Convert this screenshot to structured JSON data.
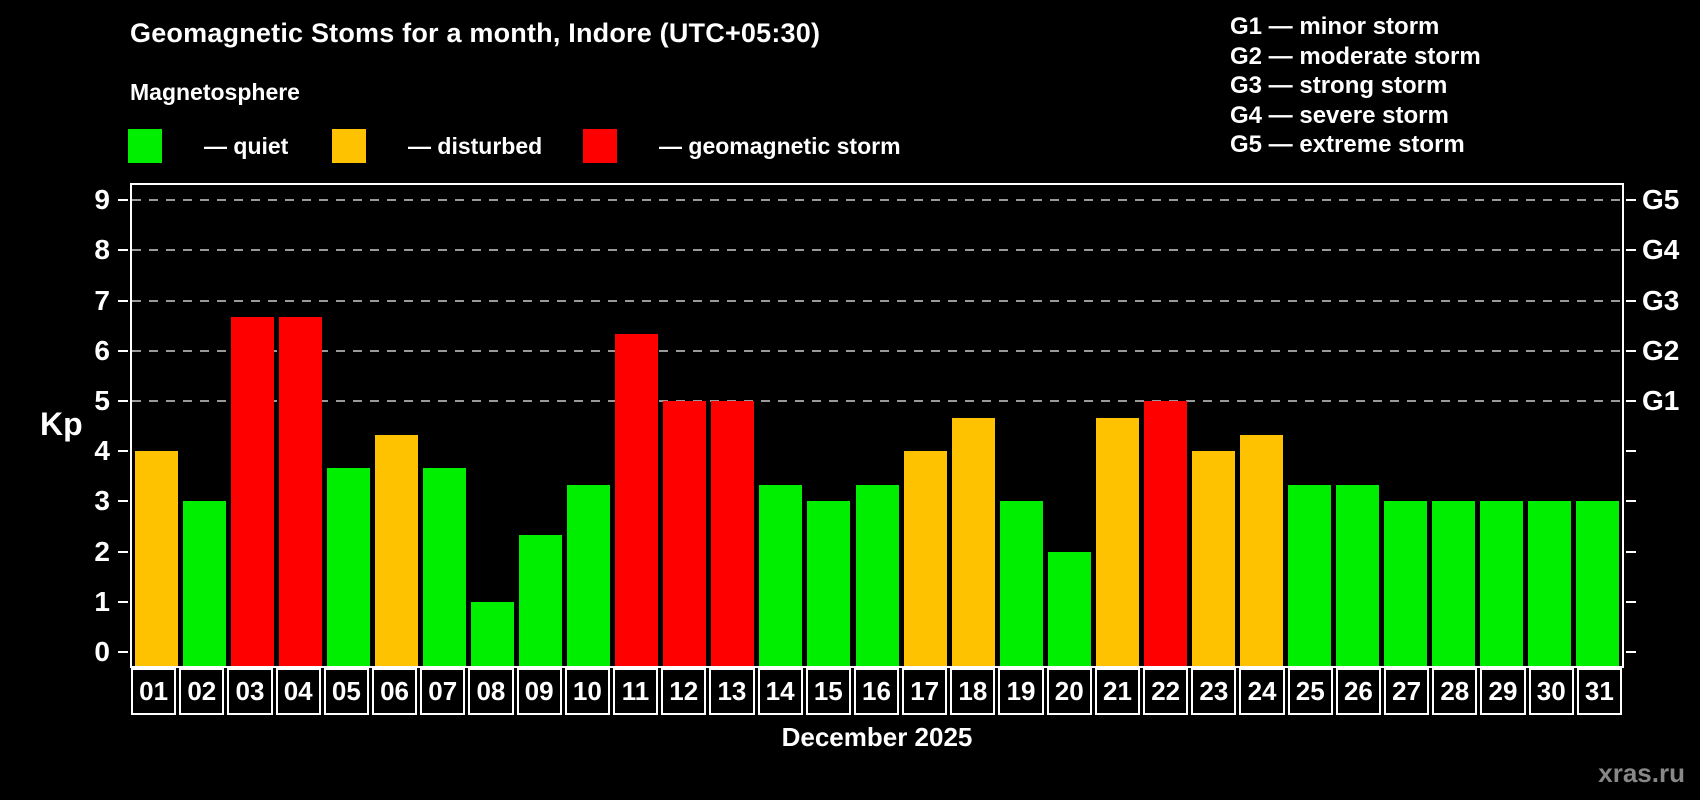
{
  "title": "Geomagnetic Stoms for a month, Indore (UTC+05:30)",
  "subtitle": "Magnetosphere",
  "colors": {
    "quiet": "#00ee00",
    "disturbed": "#ffc200",
    "storm": "#ff0000",
    "background": "#000000",
    "axis": "#ffffff",
    "grid": "#999999",
    "watermark": "#888888"
  },
  "legend": [
    {
      "key": "quiet",
      "label": "— quiet"
    },
    {
      "key": "disturbed",
      "label": "— disturbed"
    },
    {
      "key": "storm",
      "label": "— geomagnetic storm"
    }
  ],
  "g_scale_legend": [
    "G1 — minor storm",
    "G2 — moderate storm",
    "G3 — strong storm",
    "G4 — severe storm",
    "G5 — extreme storm"
  ],
  "y_axis": {
    "label": "Kp",
    "ticks": [
      0,
      1,
      2,
      3,
      4,
      5,
      6,
      7,
      8,
      9
    ],
    "grid_levels": [
      5,
      6,
      7,
      8,
      9
    ],
    "right_labels": [
      {
        "value": 5,
        "label": "G1"
      },
      {
        "value": 6,
        "label": "G2"
      },
      {
        "value": 7,
        "label": "G3"
      },
      {
        "value": 8,
        "label": "G4"
      },
      {
        "value": 9,
        "label": "G5"
      }
    ]
  },
  "footer": {
    "month_label": "December 2025",
    "watermark": "xras.ru"
  },
  "chart_data": {
    "type": "bar",
    "title": "Geomagnetic Stoms for a month, Indore (UTC+05:30)",
    "xlabel": "December 2025",
    "ylabel": "Kp",
    "ylim": [
      0,
      9
    ],
    "grid": "horizontal dashed gridlines at Kp 5,6,7,8,9 (G1–G5 levels)",
    "legend_position": "top-left",
    "categories": [
      "01",
      "02",
      "03",
      "04",
      "05",
      "06",
      "07",
      "08",
      "09",
      "10",
      "11",
      "12",
      "13",
      "14",
      "15",
      "16",
      "17",
      "18",
      "19",
      "20",
      "21",
      "22",
      "23",
      "24",
      "25",
      "26",
      "27",
      "28",
      "29",
      "30",
      "31"
    ],
    "values": [
      4.0,
      3.0,
      6.67,
      6.67,
      3.67,
      4.33,
      3.67,
      1.0,
      2.33,
      3.33,
      6.33,
      5.0,
      5.0,
      3.33,
      3.0,
      3.33,
      4.0,
      4.67,
      3.0,
      2.0,
      4.67,
      5.0,
      4.0,
      4.33,
      3.33,
      3.33,
      3.0,
      3.0,
      3.0,
      3.0,
      3.0
    ],
    "statuses": [
      "disturbed",
      "quiet",
      "storm",
      "storm",
      "quiet",
      "disturbed",
      "quiet",
      "quiet",
      "quiet",
      "quiet",
      "storm",
      "storm",
      "storm",
      "quiet",
      "quiet",
      "quiet",
      "disturbed",
      "disturbed",
      "quiet",
      "quiet",
      "disturbed",
      "storm",
      "disturbed",
      "disturbed",
      "quiet",
      "quiet",
      "quiet",
      "quiet",
      "quiet",
      "quiet",
      "quiet"
    ]
  }
}
